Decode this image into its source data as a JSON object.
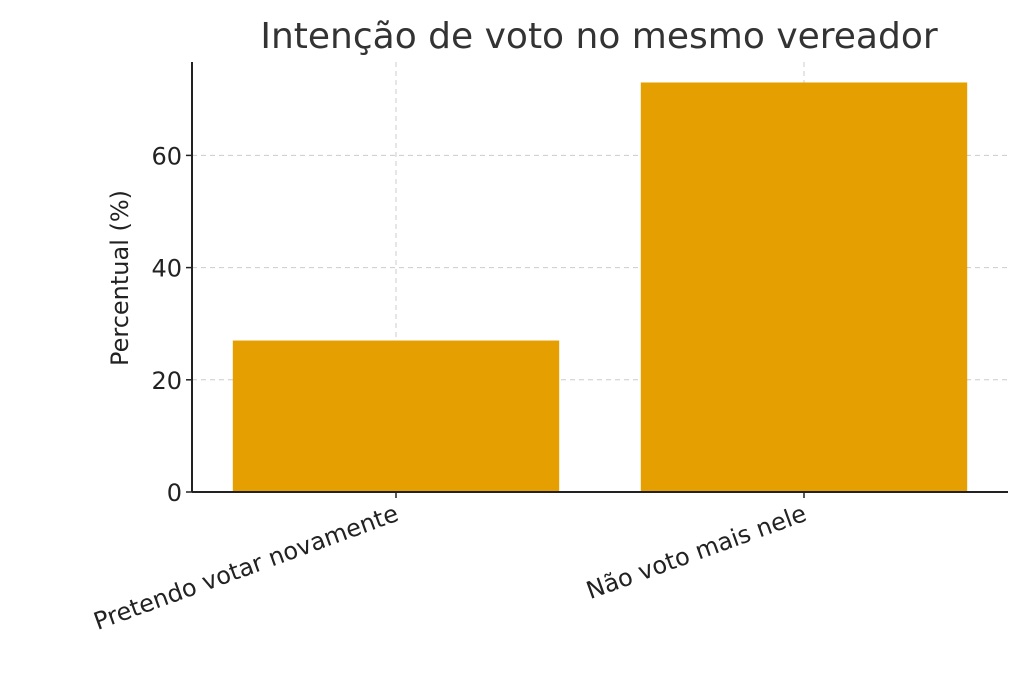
{
  "chart_data": {
    "type": "bar",
    "title": "Intenção de voto no mesmo vereador",
    "xlabel": "",
    "ylabel": "Percentual (%)",
    "categories": [
      "Pretendo votar novamente",
      "Não voto mais nele"
    ],
    "values": [
      27,
      73
    ],
    "ylim": [
      0,
      76.65
    ],
    "yticks": [
      0,
      20,
      40,
      60
    ],
    "bar_color": "#E69F00",
    "grid": true
  }
}
